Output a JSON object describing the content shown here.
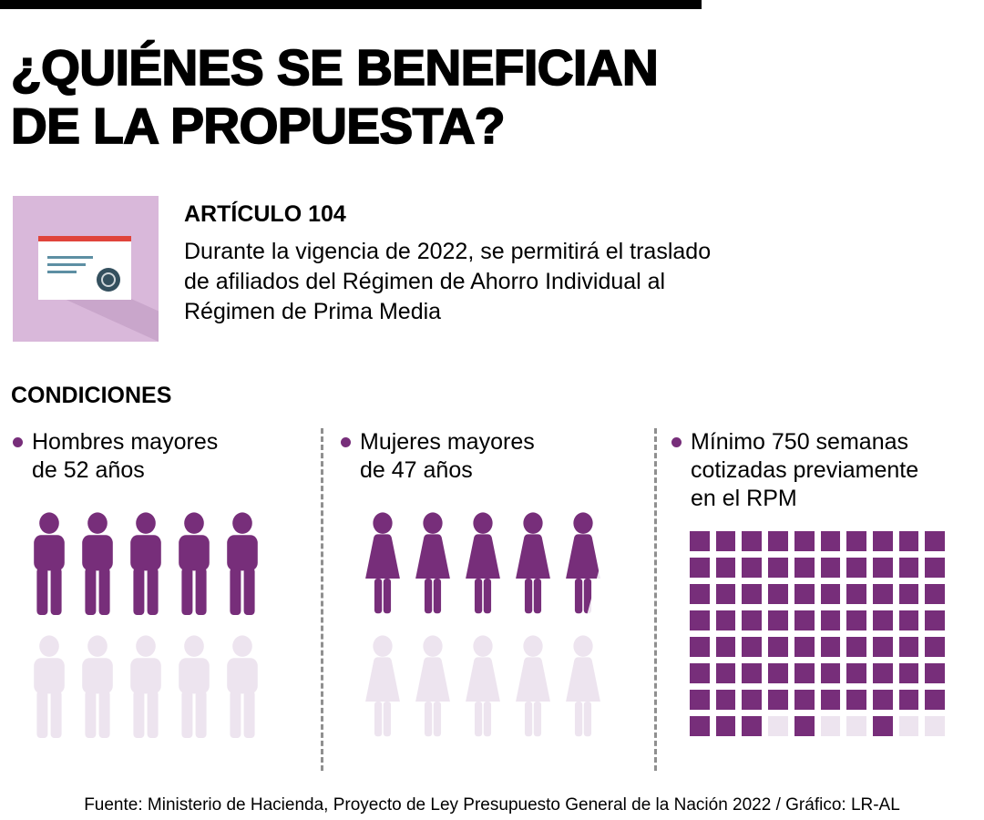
{
  "colors": {
    "purple": "#772E7A",
    "purple_light": "#EDE4EF",
    "icon_bg": "#D9B8DA",
    "icon_shadow": "#C9A6CB",
    "card_red": "#E0443B",
    "card_line": "#5D8FA3",
    "seal": "#34505E",
    "divider": "#8F8F8F",
    "text": "#000000"
  },
  "header": {
    "title_line1": "¿QUIÉNES SE BENEFICIAN",
    "title_line2": "DE LA PROPUESTA?"
  },
  "article": {
    "icon": "document-card-icon",
    "label": "ARTÍCULO 104",
    "text": "Durante la vigencia de 2022, se permitirá el traslado de afiliados del Régimen de Ahorro Individual al Régimen de Prima Media"
  },
  "conditions": {
    "heading": "CONDICIONES",
    "items": [
      {
        "label": "Hombres mayores de 52 años",
        "chart": {
          "type": "pictogram",
          "kind": "male",
          "rows": [
            [
              "full",
              "full",
              "full",
              "full",
              "full"
            ],
            [
              "sliver",
              "empty",
              "empty",
              "empty",
              "empty"
            ]
          ]
        }
      },
      {
        "label": "Mujeres mayores de 47 años",
        "chart": {
          "type": "pictogram",
          "kind": "female",
          "rows": [
            [
              "full",
              "full",
              "full",
              "full",
              "wedge"
            ],
            [
              "empty",
              "empty",
              "empty",
              "empty",
              "empty"
            ]
          ]
        }
      },
      {
        "label": "Mínimo 750 semanas cotizadas previamente en el RPM",
        "chart": {
          "type": "waffle",
          "pattern": [
            "1111111111",
            "1111111111",
            "1111111111",
            "1111111111",
            "1111111111",
            "1111111111",
            "1111111111",
            "1110100100"
          ]
        }
      }
    ]
  },
  "chart_data": [
    {
      "type": "pictogram",
      "title": "Hombres mayores de 52 años",
      "icon": "male-person",
      "icons_total": 10,
      "icons_filled": 5,
      "partial_icon_fraction": 0.07,
      "legend_position": "none"
    },
    {
      "type": "pictogram",
      "title": "Mujeres mayores de 47 años",
      "icon": "female-person",
      "icons_total": 10,
      "icons_filled": 4,
      "partial_icon_fraction": 0.8,
      "legend_position": "none"
    },
    {
      "type": "waffle",
      "title": "Mínimo 750 semanas cotizadas previamente en el RPM",
      "rows": 8,
      "cols": 10,
      "squares_total": 80,
      "squares_filled": 75,
      "value": 750,
      "unit": "semanas"
    }
  ],
  "footer": {
    "source": "Fuente: Ministerio de Hacienda, Proyecto de Ley Presupuesto General de la Nación 2022 / Gráfico: LR-AL"
  }
}
